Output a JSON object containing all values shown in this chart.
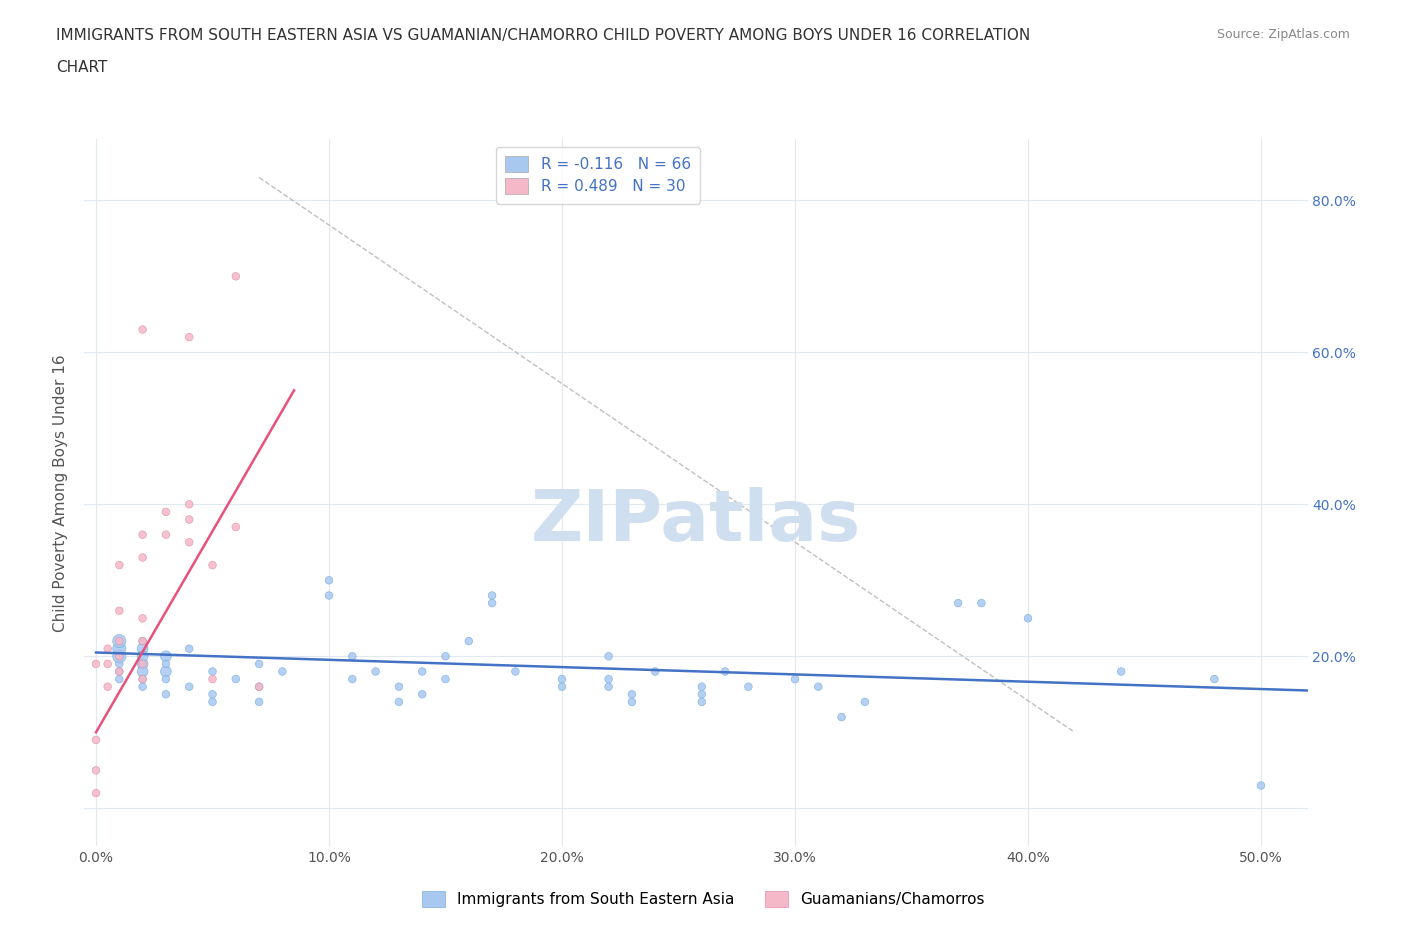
{
  "title_line1": "IMMIGRANTS FROM SOUTH EASTERN ASIA VS GUAMANIAN/CHAMORRO CHILD POVERTY AMONG BOYS UNDER 16 CORRELATION",
  "title_line2": "CHART",
  "source": "Source: ZipAtlas.com",
  "ylabel": "Child Poverty Among Boys Under 16",
  "x_ticks": [
    0.0,
    0.1,
    0.2,
    0.3,
    0.4,
    0.5
  ],
  "x_tick_labels": [
    "0.0%",
    "10.0%",
    "20.0%",
    "30.0%",
    "40.0%",
    "50.0%"
  ],
  "y_ticks": [
    0.0,
    0.2,
    0.4,
    0.6,
    0.8
  ],
  "y_tick_labels_right": [
    "",
    "20.0%",
    "40.0%",
    "60.0%",
    "80.0%"
  ],
  "xlim": [
    -0.005,
    0.52
  ],
  "ylim": [
    -0.05,
    0.88
  ],
  "legend_entries": [
    {
      "label": "R = -0.116   N = 66",
      "color": "#a8c8f0"
    },
    {
      "label": "R = 0.489   N = 30",
      "color": "#f4b8c8"
    }
  ],
  "blue_scatter": {
    "x": [
      0.01,
      0.01,
      0.01,
      0.01,
      0.01,
      0.01,
      0.02,
      0.02,
      0.02,
      0.02,
      0.02,
      0.02,
      0.02,
      0.03,
      0.03,
      0.03,
      0.03,
      0.03,
      0.04,
      0.04,
      0.05,
      0.05,
      0.05,
      0.06,
      0.07,
      0.07,
      0.07,
      0.08,
      0.1,
      0.1,
      0.11,
      0.11,
      0.12,
      0.13,
      0.13,
      0.14,
      0.14,
      0.15,
      0.15,
      0.16,
      0.17,
      0.17,
      0.18,
      0.2,
      0.2,
      0.22,
      0.22,
      0.22,
      0.23,
      0.23,
      0.24,
      0.26,
      0.26,
      0.26,
      0.27,
      0.28,
      0.3,
      0.31,
      0.32,
      0.33,
      0.37,
      0.38,
      0.4,
      0.44,
      0.48,
      0.5
    ],
    "y": [
      0.19,
      0.2,
      0.21,
      0.22,
      0.17,
      0.18,
      0.21,
      0.19,
      0.2,
      0.18,
      0.22,
      0.16,
      0.17,
      0.2,
      0.18,
      0.15,
      0.19,
      0.17,
      0.21,
      0.16,
      0.18,
      0.15,
      0.14,
      0.17,
      0.19,
      0.16,
      0.14,
      0.18,
      0.28,
      0.3,
      0.2,
      0.17,
      0.18,
      0.16,
      0.14,
      0.18,
      0.15,
      0.17,
      0.2,
      0.22,
      0.27,
      0.28,
      0.18,
      0.17,
      0.16,
      0.17,
      0.2,
      0.16,
      0.15,
      0.14,
      0.18,
      0.16,
      0.15,
      0.14,
      0.18,
      0.16,
      0.17,
      0.16,
      0.12,
      0.14,
      0.27,
      0.27,
      0.25,
      0.18,
      0.17,
      0.03
    ],
    "sizes": [
      30,
      90,
      90,
      90,
      30,
      30,
      60,
      60,
      60,
      60,
      30,
      30,
      30,
      60,
      60,
      30,
      30,
      30,
      30,
      30,
      30,
      30,
      30,
      30,
      30,
      30,
      30,
      30,
      30,
      30,
      30,
      30,
      30,
      30,
      30,
      30,
      30,
      30,
      30,
      30,
      30,
      30,
      30,
      30,
      30,
      30,
      30,
      30,
      30,
      30,
      30,
      30,
      30,
      30,
      30,
      30,
      30,
      30,
      30,
      30,
      30,
      30,
      30,
      30,
      30,
      30
    ],
    "color": "#a8c8f0",
    "edgecolor": "#7ab0e0"
  },
  "pink_scatter": {
    "x": [
      0.0,
      0.0,
      0.0,
      0.0,
      0.005,
      0.005,
      0.005,
      0.01,
      0.01,
      0.01,
      0.01,
      0.01,
      0.02,
      0.02,
      0.02,
      0.02,
      0.02,
      0.02,
      0.02,
      0.03,
      0.03,
      0.04,
      0.04,
      0.04,
      0.04,
      0.05,
      0.05,
      0.06,
      0.06,
      0.07
    ],
    "y": [
      0.02,
      0.05,
      0.09,
      0.19,
      0.16,
      0.19,
      0.21,
      0.18,
      0.2,
      0.22,
      0.26,
      0.32,
      0.17,
      0.19,
      0.22,
      0.25,
      0.33,
      0.36,
      0.63,
      0.36,
      0.39,
      0.35,
      0.38,
      0.4,
      0.62,
      0.17,
      0.32,
      0.37,
      0.7,
      0.16
    ],
    "sizes": [
      30,
      30,
      30,
      30,
      30,
      30,
      30,
      30,
      30,
      30,
      30,
      30,
      30,
      30,
      30,
      30,
      30,
      30,
      30,
      30,
      30,
      30,
      30,
      30,
      30,
      30,
      30,
      30,
      30,
      30
    ],
    "color": "#f4b8c8",
    "edgecolor": "#e890a8"
  },
  "blue_line": {
    "x": [
      0.0,
      0.52
    ],
    "y": [
      0.205,
      0.155
    ],
    "color": "#4472c4"
  },
  "pink_line": {
    "x": [
      0.0,
      0.085
    ],
    "y": [
      0.1,
      0.55
    ],
    "color": "#e8527a"
  },
  "gray_dashed_line": {
    "x": [
      0.07,
      0.42
    ],
    "y": [
      0.83,
      0.1
    ],
    "color": "#c0c0c0"
  },
  "watermark": "ZIPatlas",
  "watermark_color": "#d0dff0",
  "bg_color": "#ffffff",
  "grid_color": "#e0e8f0"
}
